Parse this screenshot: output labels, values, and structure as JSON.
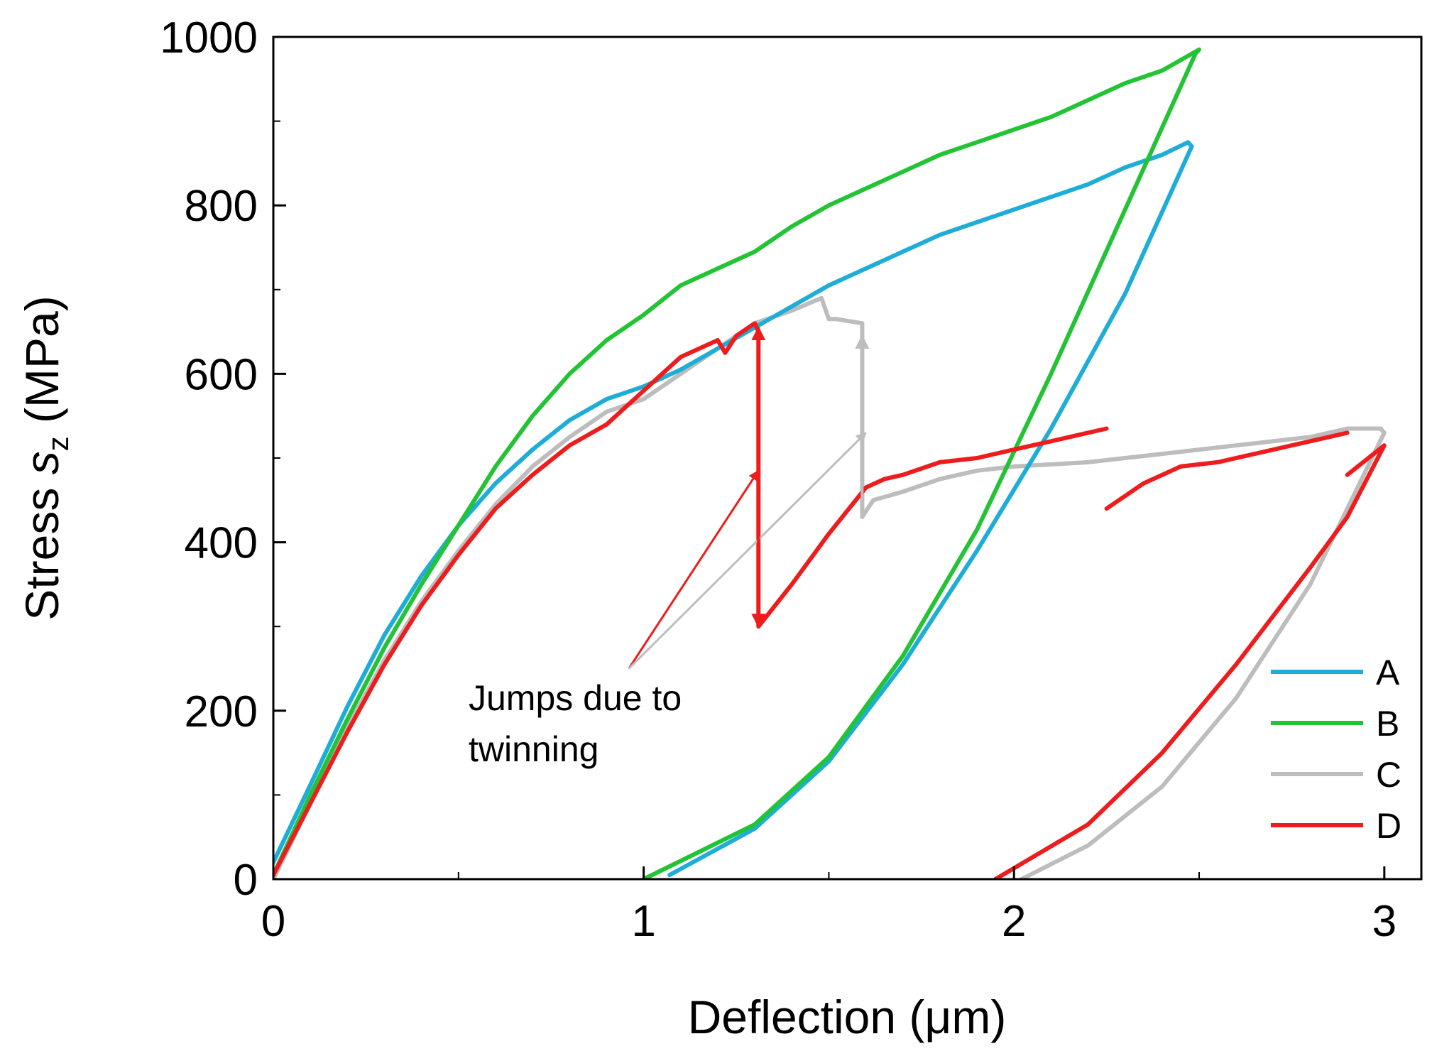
{
  "chart_data": {
    "type": "line",
    "title": "",
    "xlabel": "Deflection (μm)",
    "ylabel_prefix": "Stress ",
    "ylabel_symbol": "s",
    "ylabel_subscript": "z",
    "ylabel_suffix": " (MPa)",
    "xlim": [
      0,
      3.1
    ],
    "ylim": [
      0,
      1000
    ],
    "x_ticks": [
      0,
      1,
      2,
      3
    ],
    "x_tick_labels": [
      "0",
      "1",
      "2",
      "3"
    ],
    "y_ticks": [
      0,
      200,
      400,
      600,
      800,
      1000
    ],
    "y_tick_labels": [
      "0",
      "200",
      "400",
      "600",
      "800",
      "1000"
    ],
    "legend_position": "bottom-right",
    "series": [
      {
        "name": "A",
        "color": "#1EADD6",
        "x": [
          0,
          0.1,
          0.2,
          0.3,
          0.4,
          0.5,
          0.6,
          0.7,
          0.8,
          0.9,
          1.0,
          1.1,
          1.2,
          1.3,
          1.4,
          1.5,
          1.6,
          1.7,
          1.8,
          1.9,
          2.0,
          2.1,
          2.2,
          2.3,
          2.4,
          2.47,
          2.48,
          2.3,
          2.1,
          1.9,
          1.7,
          1.5,
          1.3,
          1.07
        ],
        "y": [
          20,
          112,
          205,
          290,
          360,
          420,
          470,
          510,
          545,
          570,
          585,
          605,
          630,
          655,
          680,
          705,
          725,
          745,
          765,
          780,
          795,
          810,
          825,
          845,
          860,
          875,
          870,
          695,
          535,
          390,
          255,
          140,
          60,
          5
        ]
      },
      {
        "name": "B",
        "color": "#22C334",
        "x": [
          0,
          0.1,
          0.2,
          0.3,
          0.4,
          0.5,
          0.6,
          0.7,
          0.8,
          0.9,
          1.0,
          1.1,
          1.2,
          1.3,
          1.4,
          1.5,
          1.6,
          1.7,
          1.8,
          1.9,
          2.0,
          2.1,
          2.2,
          2.3,
          2.4,
          2.5,
          2.49,
          2.3,
          2.1,
          1.9,
          1.7,
          1.5,
          1.3,
          1.0
        ],
        "y": [
          5,
          100,
          190,
          275,
          350,
          420,
          490,
          550,
          600,
          640,
          670,
          705,
          725,
          745,
          775,
          800,
          820,
          840,
          860,
          875,
          890,
          905,
          925,
          945,
          960,
          985,
          980,
          795,
          600,
          415,
          265,
          145,
          65,
          0
        ]
      },
      {
        "name": "C",
        "color": "#BDBDBD",
        "x": [
          0,
          0.1,
          0.2,
          0.3,
          0.4,
          0.5,
          0.6,
          0.7,
          0.8,
          0.9,
          1.0,
          1.1,
          1.2,
          1.3,
          1.4,
          1.48,
          1.5,
          1.52,
          1.59,
          1.59,
          1.62,
          1.7,
          1.8,
          1.9,
          2.0,
          2.2,
          2.4,
          2.6,
          2.8,
          2.9,
          2.99,
          3.0,
          2.9,
          2.8,
          2.6,
          2.4,
          2.2,
          2.02
        ],
        "y": [
          0,
          90,
          180,
          260,
          330,
          390,
          445,
          490,
          525,
          555,
          570,
          600,
          630,
          660,
          675,
          690,
          665,
          665,
          660,
          430,
          450,
          460,
          475,
          485,
          490,
          495,
          505,
          515,
          525,
          535,
          535,
          530,
          440,
          350,
          215,
          110,
          40,
          0
        ]
      },
      {
        "name": "D",
        "color": "#EE1C1C",
        "x": [
          0,
          0.1,
          0.2,
          0.3,
          0.4,
          0.5,
          0.6,
          0.7,
          0.8,
          0.9,
          1.0,
          1.1,
          1.2,
          1.22,
          1.25,
          1.3,
          1.31,
          1.31,
          1.4,
          1.5,
          1.6,
          1.65,
          1.7,
          1.8,
          1.9,
          2.0,
          2.1,
          2.2,
          2.25,
          null,
          2.25,
          2.35,
          2.45,
          2.55,
          2.65,
          2.75,
          2.85,
          2.9,
          null,
          2.9,
          3.0,
          2.9,
          2.8,
          2.6,
          2.4,
          2.2,
          1.95
        ],
        "y": [
          5,
          90,
          175,
          255,
          325,
          385,
          440,
          480,
          515,
          540,
          580,
          620,
          640,
          625,
          645,
          660,
          650,
          300,
          350,
          410,
          465,
          475,
          480,
          495,
          500,
          510,
          520,
          530,
          535,
          null,
          440,
          470,
          490,
          495,
          505,
          515,
          525,
          530,
          null,
          480,
          515,
          430,
          370,
          255,
          150,
          65,
          0
        ]
      }
    ],
    "annotations": [
      {
        "text_lines": [
          "Jumps due to",
          "twinning"
        ],
        "pointers": [
          {
            "color": "#EE1C1C",
            "from": [
              0.96,
              250
            ],
            "to": [
              1.31,
              485
            ]
          },
          {
            "color": "#BDBDBD",
            "from": [
              0.96,
              250
            ],
            "to": [
              1.6,
              530
            ]
          }
        ],
        "jump_arrows": [
          {
            "color": "#EE1C1C",
            "x": 1.31,
            "y_from": 300,
            "y_to": 655,
            "double_headed": true
          },
          {
            "color": "#BDBDBD",
            "x": 1.59,
            "y_from": 450,
            "y_to": 645,
            "double_headed": false
          }
        ]
      }
    ]
  }
}
